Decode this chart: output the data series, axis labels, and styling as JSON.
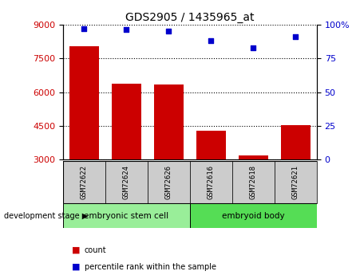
{
  "title": "GDS2905 / 1435965_at",
  "categories": [
    "GSM72622",
    "GSM72624",
    "GSM72626",
    "GSM72616",
    "GSM72618",
    "GSM72621"
  ],
  "bar_values": [
    8050,
    6380,
    6330,
    4280,
    3180,
    4530
  ],
  "scatter_values": [
    97,
    96.5,
    95.5,
    88,
    83,
    91
  ],
  "bar_color": "#cc0000",
  "scatter_color": "#0000cc",
  "bar_bottom": 3000,
  "ylim_left": [
    3000,
    9000
  ],
  "ylim_right": [
    0,
    100
  ],
  "yticks_left": [
    3000,
    4500,
    6000,
    7500,
    9000
  ],
  "yticks_right": [
    0,
    25,
    50,
    75,
    100
  ],
  "group1_label": "embryonic stem cell",
  "group2_label": "embryoid body",
  "group1_indices": [
    0,
    1,
    2
  ],
  "group2_indices": [
    3,
    4,
    5
  ],
  "group1_color": "#99ee99",
  "group2_color": "#55dd55",
  "label_bar": "count",
  "label_scatter": "percentile rank within the sample",
  "stage_label": "development stage",
  "tick_label_color_left": "#cc0000",
  "tick_label_color_right": "#0000cc",
  "sample_box_color": "#cccccc",
  "bar_width": 0.7
}
